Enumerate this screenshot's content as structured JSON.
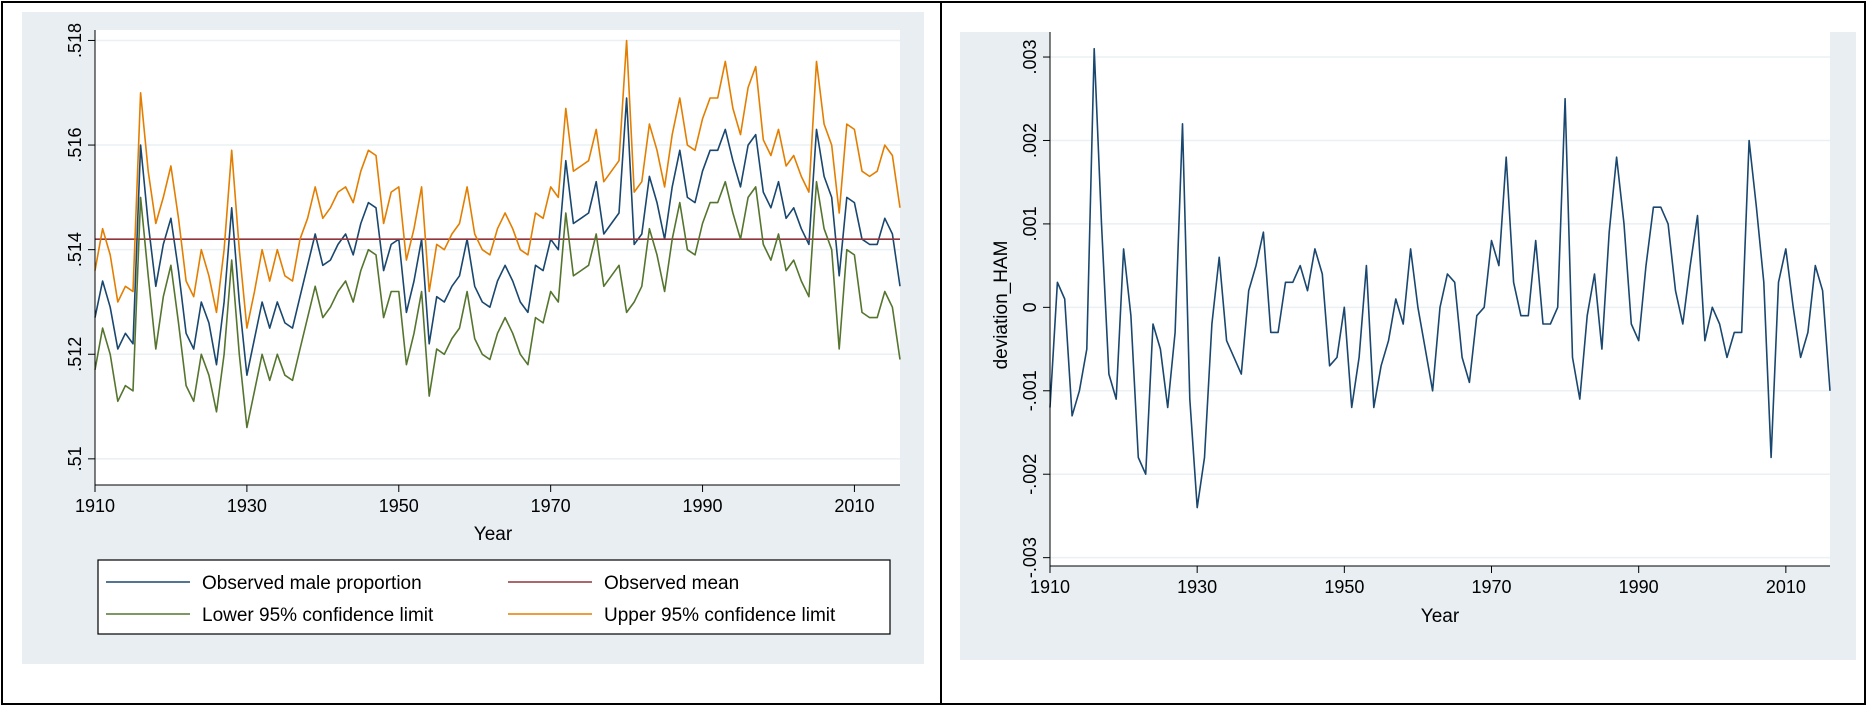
{
  "colors": {
    "panel_bg": "#e8eef2",
    "plot_bg": "#ffffff",
    "grid": "#eaf0f3",
    "observed": "#1a476f",
    "mean": "#90353b",
    "lower": "#55752f",
    "upper": "#e37e00",
    "deviation": "#1a476f"
  },
  "chart_data": [
    {
      "type": "line",
      "xlabel": "Year",
      "ylabel": "",
      "xlim": [
        1910,
        2016
      ],
      "ylim": [
        0.5095,
        0.5182
      ],
      "x_ticks": [
        1910,
        1930,
        1950,
        1970,
        1990,
        2010
      ],
      "x_tick_labels": [
        "1910",
        "1930",
        "1950",
        "1970",
        "1990",
        "2010"
      ],
      "y_ticks": [
        0.51,
        0.512,
        0.514,
        0.516,
        0.518
      ],
      "y_tick_labels": [
        ".51",
        ".512",
        ".514",
        ".516",
        ".518"
      ],
      "grid": true,
      "legend_position": "bottom",
      "x": [
        1910,
        1911,
        1912,
        1913,
        1914,
        1915,
        1916,
        1917,
        1918,
        1919,
        1920,
        1921,
        1922,
        1923,
        1924,
        1925,
        1926,
        1927,
        1928,
        1929,
        1930,
        1931,
        1932,
        1933,
        1934,
        1935,
        1936,
        1937,
        1938,
        1939,
        1940,
        1941,
        1942,
        1943,
        1944,
        1945,
        1946,
        1947,
        1948,
        1949,
        1950,
        1951,
        1952,
        1953,
        1954,
        1955,
        1956,
        1957,
        1958,
        1959,
        1960,
        1961,
        1962,
        1963,
        1964,
        1965,
        1966,
        1967,
        1968,
        1969,
        1970,
        1971,
        1972,
        1973,
        1974,
        1975,
        1976,
        1977,
        1978,
        1979,
        1980,
        1981,
        1982,
        1983,
        1984,
        1985,
        1986,
        1987,
        1988,
        1989,
        1990,
        1991,
        1992,
        1993,
        1994,
        1995,
        1996,
        1997,
        1998,
        1999,
        2000,
        2001,
        2002,
        2003,
        2004,
        2005,
        2006,
        2007,
        2008,
        2009,
        2010,
        2011,
        2012,
        2013,
        2014,
        2015,
        2016
      ],
      "series": [
        {
          "name": "Observed male proportion",
          "color": "#1a476f",
          "values": [
            0.5127,
            0.5134,
            0.5129,
            0.5121,
            0.5124,
            0.5122,
            0.516,
            0.5145,
            0.5133,
            0.5141,
            0.5146,
            0.5136,
            0.5124,
            0.5121,
            0.513,
            0.5126,
            0.5118,
            0.513,
            0.5148,
            0.513,
            0.5116,
            0.5123,
            0.513,
            0.5125,
            0.513,
            0.5126,
            0.5125,
            0.5131,
            0.5137,
            0.5143,
            0.5137,
            0.5138,
            0.5141,
            0.5143,
            0.5139,
            0.5145,
            0.5149,
            0.5148,
            0.5136,
            0.5141,
            0.5142,
            0.5128,
            0.5134,
            0.5142,
            0.5122,
            0.5131,
            0.513,
            0.5133,
            0.5135,
            0.5142,
            0.5133,
            0.513,
            0.5129,
            0.5134,
            0.5137,
            0.5134,
            0.513,
            0.5128,
            0.5137,
            0.5136,
            0.5142,
            0.514,
            0.5157,
            0.5145,
            0.5146,
            0.5147,
            0.5153,
            0.5143,
            0.5145,
            0.5147,
            0.5169,
            0.5141,
            0.5143,
            0.5154,
            0.5149,
            0.5142,
            0.5152,
            0.5159,
            0.515,
            0.5149,
            0.5155,
            0.5159,
            0.5159,
            0.5163,
            0.5157,
            0.5152,
            0.516,
            0.5162,
            0.5151,
            0.5148,
            0.5153,
            0.5146,
            0.5148,
            0.5144,
            0.5141,
            0.5163,
            0.5154,
            0.515,
            0.5135,
            0.515,
            0.5149,
            0.5142,
            0.5141,
            0.5141,
            0.5146,
            0.5143,
            0.5133
          ]
        },
        {
          "name": "Observed mean",
          "color": "#90353b",
          "values": [
            0.5142,
            0.5142,
            0.5142,
            0.5142,
            0.5142,
            0.5142,
            0.5142,
            0.5142,
            0.5142,
            0.5142,
            0.5142,
            0.5142,
            0.5142,
            0.5142,
            0.5142,
            0.5142,
            0.5142,
            0.5142,
            0.5142,
            0.5142,
            0.5142,
            0.5142,
            0.5142,
            0.5142,
            0.5142,
            0.5142,
            0.5142,
            0.5142,
            0.5142,
            0.5142,
            0.5142,
            0.5142,
            0.5142,
            0.5142,
            0.5142,
            0.5142,
            0.5142,
            0.5142,
            0.5142,
            0.5142,
            0.5142,
            0.5142,
            0.5142,
            0.5142,
            0.5142,
            0.5142,
            0.5142,
            0.5142,
            0.5142,
            0.5142,
            0.5142,
            0.5142,
            0.5142,
            0.5142,
            0.5142,
            0.5142,
            0.5142,
            0.5142,
            0.5142,
            0.5142,
            0.5142,
            0.5142,
            0.5142,
            0.5142,
            0.5142,
            0.5142,
            0.5142,
            0.5142,
            0.5142,
            0.5142,
            0.5142,
            0.5142,
            0.5142,
            0.5142,
            0.5142,
            0.5142,
            0.5142,
            0.5142,
            0.5142,
            0.5142,
            0.5142,
            0.5142,
            0.5142,
            0.5142,
            0.5142,
            0.5142,
            0.5142,
            0.5142,
            0.5142,
            0.5142,
            0.5142,
            0.5142,
            0.5142,
            0.5142,
            0.5142,
            0.5142,
            0.5142,
            0.5142,
            0.5142,
            0.5142,
            0.5142,
            0.5142,
            0.5142,
            0.5142,
            0.5142,
            0.5142,
            0.5142
          ]
        },
        {
          "name": "Lower 95% confidence limit",
          "color": "#55752f",
          "values": [
            0.5117,
            0.5125,
            0.512,
            0.5111,
            0.5114,
            0.5113,
            0.515,
            0.5135,
            0.5121,
            0.5131,
            0.5137,
            0.5126,
            0.5114,
            0.5111,
            0.512,
            0.5116,
            0.5109,
            0.512,
            0.5138,
            0.512,
            0.5106,
            0.5113,
            0.512,
            0.5115,
            0.512,
            0.5116,
            0.5115,
            0.5121,
            0.5127,
            0.5133,
            0.5127,
            0.5129,
            0.5132,
            0.5134,
            0.513,
            0.5136,
            0.514,
            0.5139,
            0.5127,
            0.5132,
            0.5132,
            0.5118,
            0.5124,
            0.5132,
            0.5112,
            0.5121,
            0.512,
            0.5123,
            0.5125,
            0.5132,
            0.5123,
            0.512,
            0.5119,
            0.5124,
            0.5127,
            0.5124,
            0.512,
            0.5118,
            0.5127,
            0.5126,
            0.5132,
            0.513,
            0.5147,
            0.5135,
            0.5136,
            0.5137,
            0.5143,
            0.5133,
            0.5135,
            0.5137,
            0.5128,
            0.513,
            0.5133,
            0.5144,
            0.5139,
            0.5132,
            0.5142,
            0.5149,
            0.514,
            0.5139,
            0.5145,
            0.5149,
            0.5149,
            0.5153,
            0.5147,
            0.5142,
            0.515,
            0.5152,
            0.5141,
            0.5138,
            0.5143,
            0.5136,
            0.5138,
            0.5134,
            0.5131,
            0.5153,
            0.5144,
            0.514,
            0.5121,
            0.514,
            0.5139,
            0.5128,
            0.5127,
            0.5127,
            0.5132,
            0.5129,
            0.5119
          ]
        },
        {
          "name": "Upper 95% confidence limit",
          "color": "#e37e00",
          "values": [
            0.5136,
            0.5144,
            0.5139,
            0.513,
            0.5133,
            0.5132,
            0.517,
            0.5155,
            0.5145,
            0.515,
            0.5156,
            0.5146,
            0.5134,
            0.5131,
            0.514,
            0.5135,
            0.5128,
            0.514,
            0.5159,
            0.514,
            0.5125,
            0.5132,
            0.514,
            0.5134,
            0.514,
            0.5135,
            0.5134,
            0.5142,
            0.5146,
            0.5152,
            0.5146,
            0.5148,
            0.5151,
            0.5152,
            0.5149,
            0.5155,
            0.5159,
            0.5158,
            0.5145,
            0.5151,
            0.5152,
            0.5138,
            0.5144,
            0.5152,
            0.5132,
            0.5141,
            0.514,
            0.5143,
            0.5145,
            0.5152,
            0.5143,
            0.514,
            0.5139,
            0.5144,
            0.5147,
            0.5144,
            0.514,
            0.5139,
            0.5147,
            0.5146,
            0.5152,
            0.515,
            0.5167,
            0.5155,
            0.5156,
            0.5157,
            0.5163,
            0.5153,
            0.5155,
            0.5157,
            0.518,
            0.5151,
            0.5153,
            0.5164,
            0.5159,
            0.5152,
            0.5162,
            0.5169,
            0.516,
            0.5159,
            0.5165,
            0.5169,
            0.5169,
            0.5176,
            0.5167,
            0.5162,
            0.5171,
            0.5175,
            0.5161,
            0.5158,
            0.5163,
            0.5156,
            0.5158,
            0.5154,
            0.5151,
            0.5176,
            0.5164,
            0.516,
            0.5147,
            0.5164,
            0.5163,
            0.5155,
            0.5154,
            0.5155,
            0.516,
            0.5158,
            0.5148
          ]
        }
      ]
    },
    {
      "type": "line",
      "xlabel": "Year",
      "ylabel": "deviation_HAM",
      "xlim": [
        1910,
        2016
      ],
      "ylim": [
        -0.0031,
        0.0033
      ],
      "x_ticks": [
        1910,
        1930,
        1950,
        1970,
        1990,
        2010
      ],
      "x_tick_labels": [
        "1910",
        "1930",
        "1950",
        "1970",
        "1990",
        "2010"
      ],
      "y_ticks": [
        -0.003,
        -0.002,
        -0.001,
        0,
        0.001,
        0.002,
        0.003
      ],
      "y_tick_labels": [
        "-.003",
        "-.002",
        "-.001",
        "0",
        ".001",
        ".002",
        ".003"
      ],
      "grid": true,
      "x": [
        1910,
        1911,
        1912,
        1913,
        1914,
        1915,
        1916,
        1917,
        1918,
        1919,
        1920,
        1921,
        1922,
        1923,
        1924,
        1925,
        1926,
        1927,
        1928,
        1929,
        1930,
        1931,
        1932,
        1933,
        1934,
        1935,
        1936,
        1937,
        1938,
        1939,
        1940,
        1941,
        1942,
        1943,
        1944,
        1945,
        1946,
        1947,
        1948,
        1949,
        1950,
        1951,
        1952,
        1953,
        1954,
        1955,
        1956,
        1957,
        1958,
        1959,
        1960,
        1961,
        1962,
        1963,
        1964,
        1965,
        1966,
        1967,
        1968,
        1969,
        1970,
        1971,
        1972,
        1973,
        1974,
        1975,
        1976,
        1977,
        1978,
        1979,
        1980,
        1981,
        1982,
        1983,
        1984,
        1985,
        1986,
        1987,
        1988,
        1989,
        1990,
        1991,
        1992,
        1993,
        1994,
        1995,
        1996,
        1997,
        1998,
        1999,
        2000,
        2001,
        2002,
        2003,
        2004,
        2005,
        2006,
        2007,
        2008,
        2009,
        2010,
        2011,
        2012,
        2013,
        2014,
        2015,
        2016
      ],
      "series": [
        {
          "color": "#1a476f",
          "values": [
            -0.0012,
            0.0003,
            0.0001,
            -0.0013,
            -0.001,
            -0.0005,
            0.0031,
            0.001,
            -0.0008,
            -0.0011,
            0.0007,
            -0.0001,
            -0.0018,
            -0.002,
            -0.0002,
            -0.0005,
            -0.0012,
            -0.0003,
            0.0022,
            -0.0011,
            -0.0024,
            -0.0018,
            -0.0002,
            0.0006,
            -0.0004,
            -0.0006,
            -0.0008,
            0.0002,
            0.0005,
            0.0009,
            -0.0003,
            -0.0003,
            0.0003,
            0.0003,
            0.0005,
            0.0002,
            0.0007,
            0.0004,
            -0.0007,
            -0.0006,
            0.0,
            -0.0012,
            -0.0006,
            0.0005,
            -0.0012,
            -0.0007,
            -0.0004,
            0.0001,
            -0.0002,
            0.0007,
            0.0,
            -0.0005,
            -0.001,
            0.0,
            0.0004,
            0.0003,
            -0.0006,
            -0.0009,
            -0.0001,
            0.0,
            0.0008,
            0.0005,
            0.0018,
            0.0003,
            -0.0001,
            -0.0001,
            0.0008,
            -0.0002,
            -0.0002,
            0.0,
            0.0025,
            -0.0006,
            -0.0011,
            -0.0001,
            0.0004,
            -0.0005,
            0.0009,
            0.0018,
            0.001,
            -0.0002,
            -0.0004,
            0.0005,
            0.0012,
            0.0012,
            0.001,
            0.0002,
            -0.0002,
            0.0005,
            0.0011,
            -0.0004,
            0.0,
            -0.0002,
            -0.0006,
            -0.0003,
            -0.0003,
            0.002,
            0.0012,
            0.0003,
            -0.0018,
            0.0003,
            0.0007,
            0.0,
            -0.0006,
            -0.0003,
            0.0005,
            0.0002,
            -0.001
          ]
        }
      ]
    }
  ]
}
